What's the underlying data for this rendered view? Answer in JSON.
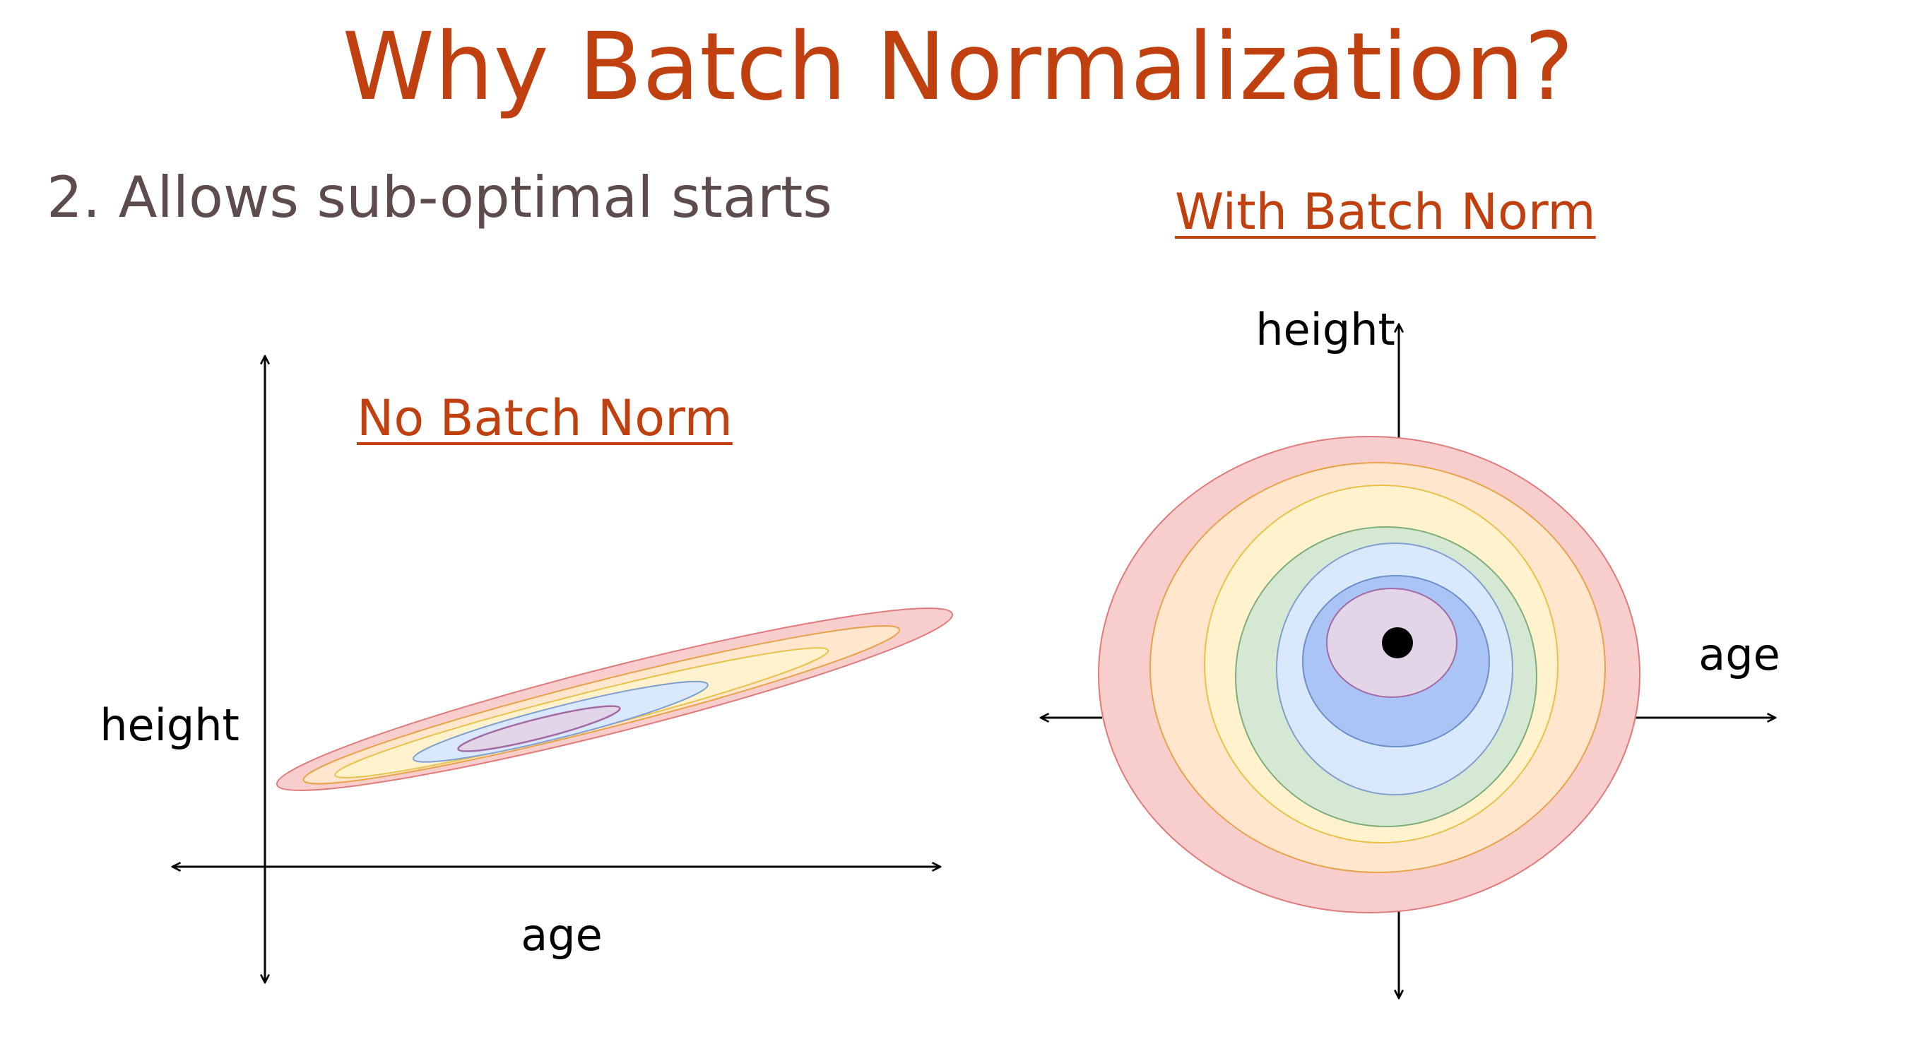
{
  "slide": {
    "title": "Why Batch Normalization?",
    "subtitle": "2. Allows sub-optimal starts"
  },
  "panels": {
    "no_batch_norm": {
      "heading": "No Batch Norm",
      "x_axis_label": "age",
      "y_axis_label": "height"
    },
    "with_batch_norm": {
      "heading": "With Batch Norm",
      "x_axis_label": "age",
      "y_axis_label": "height"
    }
  },
  "colors": {
    "title": "#c1400f",
    "subtitle": "#5e4b4b",
    "contour_red": "#f8cecc",
    "contour_orange": "#ffe6cc",
    "contour_yellow": "#fff2cc",
    "contour_green": "#d5e8d4",
    "contour_lightblue": "#dae8fc",
    "contour_blue": "#a9c4f5",
    "contour_purple": "#e1d5e7",
    "minimum_dot": "#000000"
  }
}
